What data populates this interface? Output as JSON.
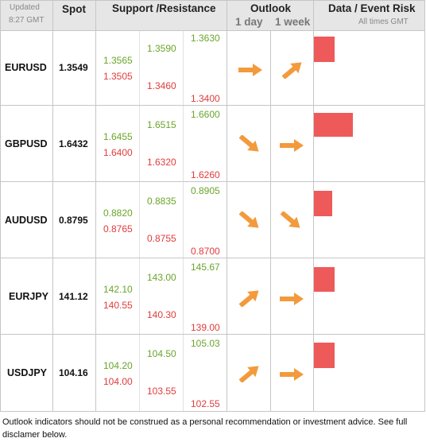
{
  "header": {
    "updated_label": "Updated",
    "updated_time": "8:27 GMT",
    "spot": "Spot",
    "support_resistance": "Support /Resistance",
    "outlook": "Outlook",
    "day": "1 day",
    "week": "1 week",
    "risk": "Data / Event Risk",
    "risk_sub": "All times GMT"
  },
  "rows": [
    {
      "pair": "EURUSD",
      "spot": "1.3549",
      "c1a": "1.3565",
      "c1b": "1.3505",
      "c2a": "1.3590",
      "c2b": "1.3460",
      "c3a": "1.3630",
      "c3b": "1.3400",
      "day_dir": "right",
      "week_dir": "up-right",
      "risk_level": 0.53
    },
    {
      "pair": "GBPUSD",
      "spot": "1.6432",
      "c1a": "1.6455",
      "c1b": "1.6400",
      "c2a": "1.6515",
      "c2b": "1.6320",
      "c3a": "1.6600",
      "c3b": "1.6260",
      "day_dir": "down-right",
      "week_dir": "right",
      "risk_level": 1.0
    },
    {
      "pair": "AUDUSD",
      "spot": "0.8795",
      "c1a": "0.8820",
      "c1b": "0.8765",
      "c2a": "0.8835",
      "c2b": "0.8755",
      "c3a": "0.8905",
      "c3b": "0.8700",
      "day_dir": "down-right",
      "week_dir": "down-right",
      "risk_level": 0.47
    },
    {
      "pair": "EURJPY",
      "spot": "141.12",
      "c1a": "142.10",
      "c1b": "140.55",
      "c2a": "143.00",
      "c2b": "140.30",
      "c3a": "145.67",
      "c3b": "139.00",
      "day_dir": "up-right",
      "week_dir": "right",
      "risk_level": 0.53
    },
    {
      "pair": "USDJPY",
      "spot": "104.16",
      "c1a": "104.20",
      "c1b": "104.00",
      "c2a": "104.50",
      "c2b": "103.55",
      "c3a": "105.03",
      "c3b": "102.55",
      "day_dir": "up-right",
      "week_dir": "right",
      "risk_level": 0.53
    }
  ],
  "colors": {
    "support": "#6aa52a",
    "resistance": "#e03c3c",
    "arrow": "#f39a3c",
    "risk": "#ee5a5a",
    "header_bg": "#e6e6e6"
  },
  "footer": "Outlook indicators should not be construed as a personal recommendation or investment advice. See full disclamer below."
}
